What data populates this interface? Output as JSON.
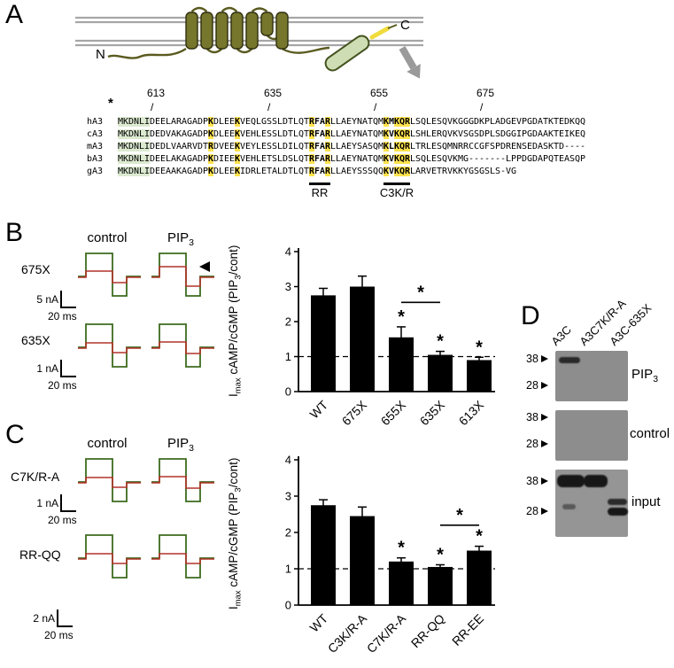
{
  "figure": {
    "panel_a": "A",
    "panel_b": "B",
    "panel_c": "C",
    "panel_d": "D"
  },
  "cartoon": {
    "n_terminus": "N",
    "c_terminus": "C"
  },
  "alignment": {
    "start_annotation": "*",
    "position_markers": [
      {
        "label": "613",
        "col": 7
      },
      {
        "label": "635",
        "col": 29
      },
      {
        "label": "655",
        "col": 49
      },
      {
        "label": "675",
        "col": 69
      }
    ],
    "rows": [
      {
        "label": "hA3",
        "seq": "MKDNLIDEELARAGADPKDLEEKVEQLGSSLDTLQTRFARLLAEYNATQMKMKQRLSQLESQVKGGGDKPLADGEVPGDATKTEDKQQ"
      },
      {
        "label": "cA3",
        "seq": "MKDNLIDEDVAKAGADPKDLEEKVEHLESSLDTLQTRFARLLAEYNATQMKVKQRLSHLERQVKVSGSDPLSDGGIPGDAAKTEIKEQ"
      },
      {
        "label": "mA3",
        "seq": "MKDNLIDEDLVAARVDTRDVEEKVEYLESSLDILQTRFARLLAEYSASQMKLKQRLTRLESQMNRRCCGFSPDRENSEDASKTD----"
      },
      {
        "label": "bA3",
        "seq": "MKDNLIDEELAKAGADPKDIEEKVEHLETSLDSLQTRFARLLAEYNATQMKVKQRLSQLESQVKMG-------LPPDGDAPQTEASQP"
      },
      {
        "label": "gA3",
        "seq": "MKDNLIDEEAAKAGADPKDLEEKIDRLETALDTLQTRFARLLAEYSSSQQKVKQRLARVETRVKKYGSGSLS-VG"
      }
    ],
    "green_cols": [
      0,
      1,
      2,
      3,
      4,
      5
    ],
    "yellow_cols": [
      17,
      22,
      36,
      39,
      50,
      52,
      53,
      54
    ],
    "bold_cols": [
      17,
      22,
      36,
      37,
      38,
      39,
      50,
      51,
      52,
      53,
      54
    ],
    "underline_annotations": [
      {
        "label": "RR",
        "start_col": 36,
        "end_col": 39
      },
      {
        "label": "C3K/R",
        "start_col": 50,
        "end_col": 54
      }
    ]
  },
  "labels": {
    "control": "control",
    "pip_base": "PIP",
    "sub3": "3",
    "imax_pre": "I",
    "imax_sub": "max",
    "ylabel_mid": " cAMP/cGMP (PIP",
    "ylabel_end": "/cont)"
  },
  "traces_b": {
    "rows": [
      {
        "label": "675X",
        "scale_v": "5 nA",
        "scale_h": "20 ms"
      },
      {
        "label": "635X",
        "scale_v": "1 nA",
        "scale_h": "20 ms"
      }
    ]
  },
  "traces_c": {
    "rows": [
      {
        "label": "C7K/R-A",
        "scale_v": "1 nA",
        "scale_h": "20 ms"
      },
      {
        "label": "RR-QQ",
        "scale_v": "2 nA",
        "scale_h": "20 ms"
      }
    ]
  },
  "chart_data": [
    {
      "id": "panelB",
      "type": "bar",
      "categories": [
        "WT",
        "675X",
        "655X",
        "635X",
        "613X"
      ],
      "values": [
        2.75,
        3.0,
        1.55,
        1.05,
        0.9
      ],
      "errors": [
        0.2,
        0.3,
        0.3,
        0.1,
        0.08
      ],
      "significant": [
        false,
        false,
        true,
        true,
        true
      ],
      "comparison_bracket": {
        "from": "655X",
        "to": "635X",
        "label": "*"
      },
      "bracket_y": 2.55,
      "ylabel": "Imax cAMP/cGMP (PIP3/cont)",
      "ylim": [
        0,
        4
      ],
      "yticks": [
        0,
        1,
        2,
        3,
        4
      ],
      "reference_line": 1
    },
    {
      "id": "panelC",
      "type": "bar",
      "categories": [
        "WT",
        "C3K/R-A",
        "C7K/R-A",
        "RR-QQ",
        "RR-EE"
      ],
      "values": [
        2.75,
        2.45,
        1.2,
        1.05,
        1.5
      ],
      "errors": [
        0.15,
        0.25,
        0.1,
        0.06,
        0.12
      ],
      "significant": [
        false,
        false,
        true,
        true,
        true
      ],
      "comparison_bracket": {
        "from": "RR-QQ",
        "to": "RR-EE",
        "label": "*"
      },
      "bracket_y": 2.2,
      "ylabel": "Imax cAMP/cGMP (PIP3/cont)",
      "ylim": [
        0,
        4
      ],
      "yticks": [
        0,
        1,
        2,
        3,
        4
      ],
      "reference_line": 1
    }
  ],
  "blot": {
    "lanes": [
      "A3C",
      "A3C7K/R-A",
      "A3C-635X"
    ],
    "mw_markers": [
      "38",
      "28"
    ],
    "blots": [
      {
        "label": "PIP3"
      },
      {
        "label": "control"
      },
      {
        "label": "input"
      }
    ]
  }
}
